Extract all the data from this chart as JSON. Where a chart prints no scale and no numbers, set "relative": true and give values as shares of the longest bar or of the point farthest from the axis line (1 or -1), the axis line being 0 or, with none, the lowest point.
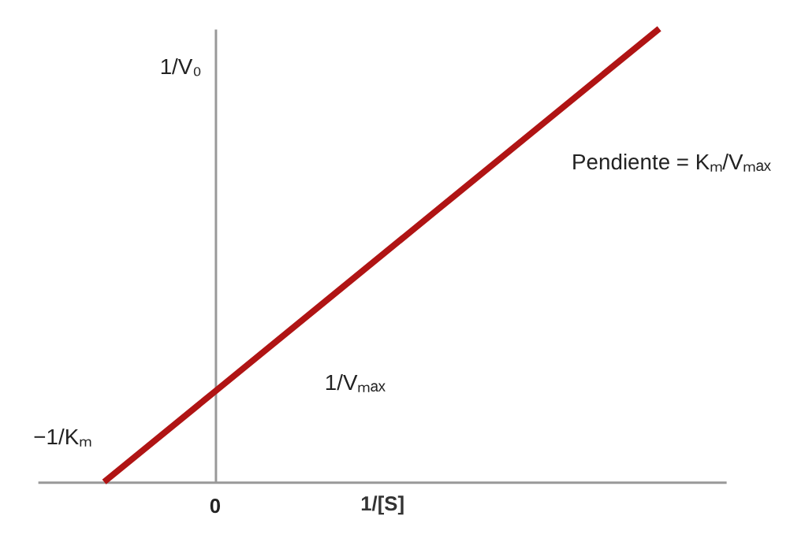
{
  "chart_data": {
    "type": "line",
    "relative": true,
    "categories": [
      null,
      null,
      null,
      null,
      null,
      null
    ],
    "series": [
      {
        "color": "#b01414",
        "values": [
          0,
          0.2,
          0.4,
          0.6,
          0.8,
          1
        ]
      }
    ],
    "xlabel": "1/[S]",
    "ylabel": "1/V₀",
    "annotations": [
      "−1/Kₘ",
      "1/Vₘₐₓ",
      "Pendiente = Kₘ/Vₘₐₓ",
      "0"
    ],
    "tick_labels": false,
    "grid": false,
    "legend": false,
    "marker": "none",
    "line_style": "solid"
  }
}
